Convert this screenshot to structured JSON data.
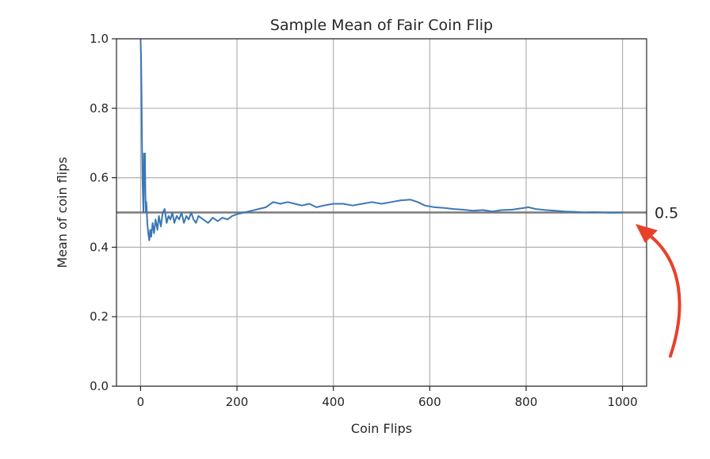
{
  "chart_data": {
    "type": "line",
    "title": "Sample Mean of Fair Coin Flip",
    "xlabel": "Coin Flips",
    "ylabel": "Mean of coin flips",
    "xlim": [
      -50,
      1050
    ],
    "ylim": [
      0.0,
      1.0
    ],
    "xticks": [
      0,
      200,
      400,
      600,
      800,
      1000
    ],
    "xtick_labels": [
      "0",
      "200",
      "400",
      "600",
      "800",
      "1000"
    ],
    "yticks": [
      0.0,
      0.2,
      0.4,
      0.6,
      0.8,
      1.0
    ],
    "ytick_labels": [
      "0.0",
      "0.2",
      "0.4",
      "0.6",
      "0.8",
      "1.0"
    ],
    "grid": true,
    "series": [
      {
        "color": "#3a78b4",
        "x": [
          0,
          1,
          2,
          3,
          4,
          5,
          6,
          7,
          8,
          9,
          10,
          11,
          12,
          14,
          16,
          18,
          20,
          22,
          25,
          28,
          31,
          35,
          38,
          42,
          46,
          50,
          54,
          58,
          62,
          66,
          70,
          75,
          80,
          85,
          90,
          95,
          100,
          105,
          110,
          115,
          120,
          130,
          140,
          150,
          160,
          170,
          180,
          190,
          200,
          215,
          230,
          245,
          260,
          275,
          290,
          305,
          320,
          335,
          350,
          365,
          380,
          400,
          420,
          440,
          460,
          480,
          500,
          520,
          540,
          560,
          575,
          590,
          610,
          630,
          650,
          670,
          690,
          710,
          730,
          750,
          770,
          790,
          805,
          820,
          840,
          860,
          880,
          900,
          920,
          940,
          960,
          980,
          1000
        ],
        "y": [
          1.0,
          0.95,
          0.85,
          0.7,
          0.6,
          0.55,
          0.5,
          0.67,
          0.6,
          0.67,
          0.55,
          0.5,
          0.53,
          0.47,
          0.44,
          0.42,
          0.45,
          0.43,
          0.47,
          0.44,
          0.48,
          0.45,
          0.49,
          0.46,
          0.5,
          0.51,
          0.47,
          0.49,
          0.48,
          0.5,
          0.47,
          0.49,
          0.48,
          0.5,
          0.47,
          0.49,
          0.48,
          0.5,
          0.48,
          0.47,
          0.49,
          0.48,
          0.47,
          0.485,
          0.475,
          0.485,
          0.48,
          0.49,
          0.495,
          0.5,
          0.505,
          0.51,
          0.515,
          0.53,
          0.525,
          0.53,
          0.525,
          0.52,
          0.525,
          0.515,
          0.52,
          0.525,
          0.525,
          0.52,
          0.525,
          0.53,
          0.525,
          0.53,
          0.535,
          0.537,
          0.53,
          0.52,
          0.515,
          0.513,
          0.51,
          0.508,
          0.505,
          0.507,
          0.503,
          0.507,
          0.508,
          0.512,
          0.515,
          0.51,
          0.507,
          0.505,
          0.503,
          0.502,
          0.5,
          0.501,
          0.5,
          0.499,
          0.5
        ]
      }
    ],
    "reference_line": {
      "y": 0.5,
      "color": "#7a7a7a"
    },
    "annotation": {
      "text": "0.5",
      "arrow_color": "#e8412a"
    }
  }
}
